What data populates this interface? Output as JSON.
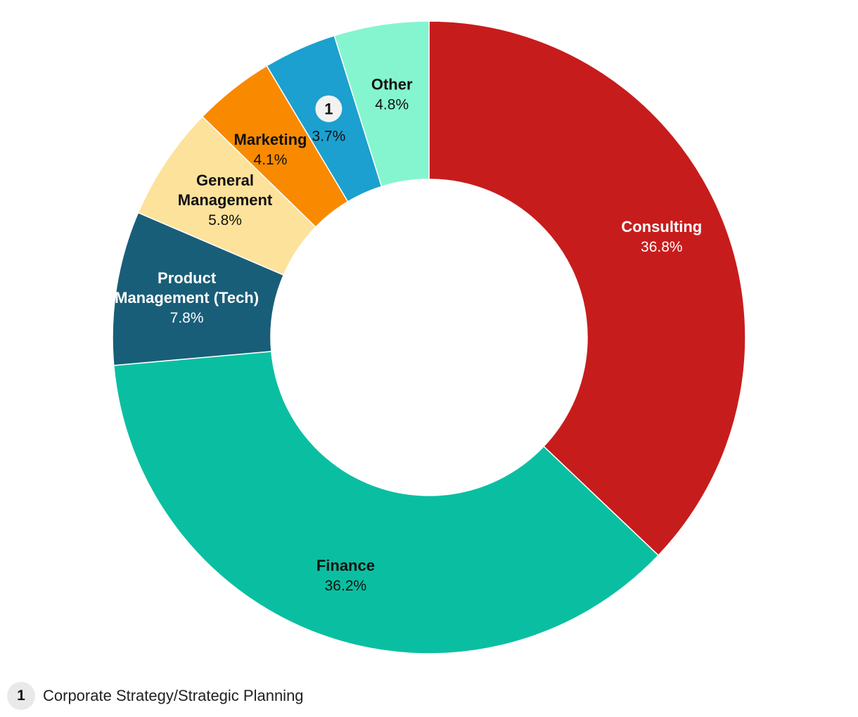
{
  "chart_data": {
    "type": "pie",
    "variant": "donut",
    "start_position": "top, clockwise",
    "slices": [
      {
        "name": "Consulting",
        "value": 36.8,
        "pct_label": "36.8%",
        "color": "#c71c1c",
        "text_color": "#ffffff"
      },
      {
        "name": "Finance",
        "value": 36.2,
        "pct_label": "36.2%",
        "color": "#0abfa1",
        "text_color": "#111111"
      },
      {
        "name": "Product Management (Tech)",
        "name_lines": [
          "Product",
          "Management (Tech)"
        ],
        "value": 7.8,
        "pct_label": "7.8%",
        "color": "#195e78",
        "text_color": "#ffffff"
      },
      {
        "name": "General Management",
        "name_lines": [
          "General",
          "Management"
        ],
        "value": 5.8,
        "pct_label": "5.8%",
        "color": "#fde29b",
        "text_color": "#111111"
      },
      {
        "name": "Marketing",
        "value": 4.1,
        "pct_label": "4.1%",
        "color": "#f98a00",
        "text_color": "#111111"
      },
      {
        "name": "1",
        "badge": "1",
        "value": 3.7,
        "pct_label": "3.7%",
        "color": "#1ca0cf",
        "text_color": "#111111"
      },
      {
        "name": "Other",
        "value": 4.8,
        "pct_label": "4.8%",
        "color": "#85f5cf",
        "text_color": "#111111"
      }
    ]
  },
  "footnote": {
    "badge": "1",
    "text": "Corporate Strategy/Strategic Planning"
  }
}
